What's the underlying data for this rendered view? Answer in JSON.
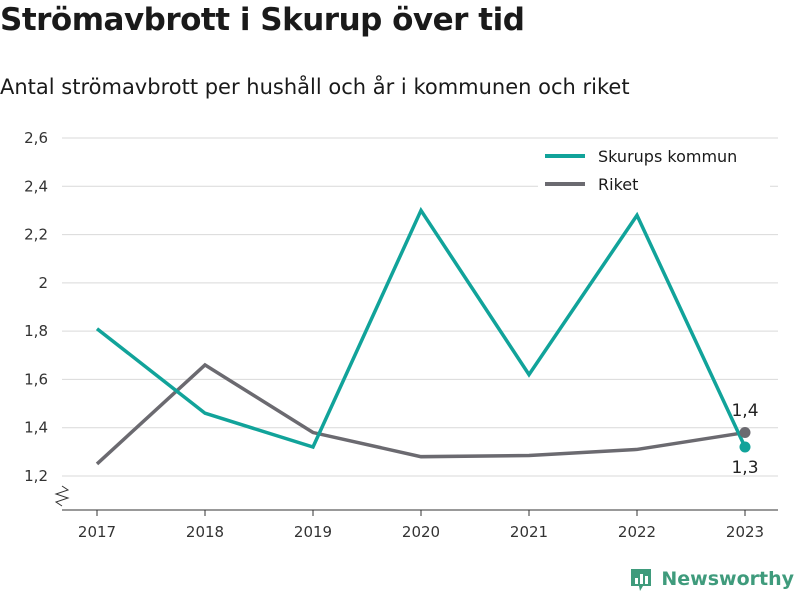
{
  "header": {
    "title": "Strömavbrott i Skurup över tid",
    "subtitle": "Antal strömavbrott per hushåll och år i kommunen och riket"
  },
  "brand": {
    "name": "Newsworthy",
    "icon": "bar-chart-icon",
    "color": "#3f9b7c"
  },
  "chart_data": {
    "type": "line",
    "title": "Strömavbrott i Skurup över tid",
    "subtitle": "Antal strömavbrott per hushåll och år i kommunen och riket",
    "categories": [
      "2017",
      "2018",
      "2019",
      "2020",
      "2021",
      "2022",
      "2023"
    ],
    "series": [
      {
        "name": "Skurups kommun",
        "color": "#11a39a",
        "values": [
          1.81,
          1.46,
          1.32,
          2.3,
          1.62,
          2.28,
          1.32
        ],
        "end_label": "1,3"
      },
      {
        "name": "Riket",
        "color": "#6b6a70",
        "values": [
          1.25,
          1.66,
          1.38,
          1.28,
          1.285,
          1.31,
          1.38
        ],
        "end_label": "1,4"
      }
    ],
    "y_ticks": [
      "1,2",
      "1,4",
      "1,6",
      "1,8",
      "2",
      "2,2",
      "2,4",
      "2,6"
    ],
    "y_tick_values": [
      1.2,
      1.4,
      1.6,
      1.8,
      2.0,
      2.2,
      2.4,
      2.6
    ],
    "ylim": [
      1.2,
      2.6
    ],
    "y_axis_break": true,
    "grid": true,
    "legend_position": "top-right",
    "xlabel": "",
    "ylabel": ""
  }
}
